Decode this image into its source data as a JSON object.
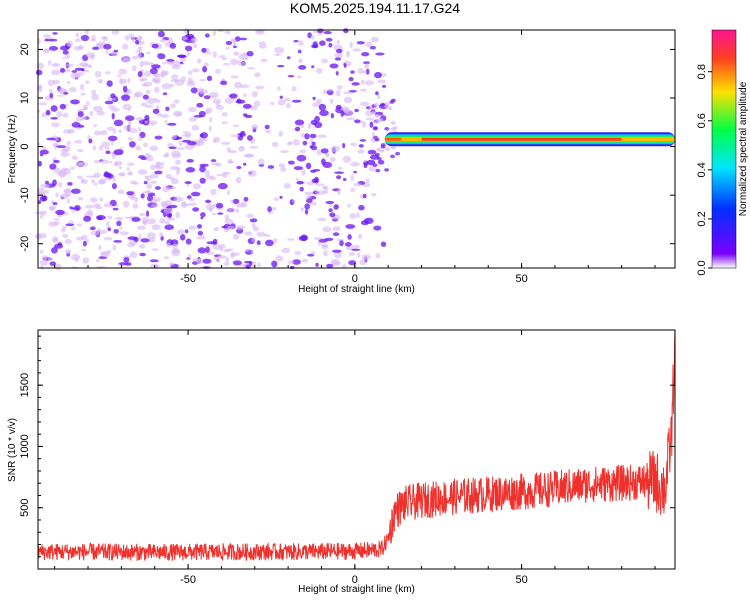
{
  "title": "KOM5.2025.194.11.17.G24",
  "colors": {
    "line": "#f0302c",
    "scatter_light": "#d9b8f5",
    "scatter_dark": "#6a12f0",
    "colormap": [
      "#ffffff",
      "#7a00ff",
      "#0030ff",
      "#00e5ff",
      "#00ff44",
      "#ffe000",
      "#ff4020",
      "#ff1493"
    ]
  },
  "chart_data": [
    {
      "type": "heatmap",
      "xlabel": "Height of straight line (km)",
      "ylabel": "Frequency (Hz)",
      "xlim": [
        -95,
        96
      ],
      "ylim": [
        -25,
        24
      ],
      "xticks": [
        -50,
        0,
        50
      ],
      "yticks": [
        20,
        10,
        0,
        -10,
        -20
      ],
      "colorbar": {
        "label": "Normalized spectral amplitude",
        "range": [
          0.0,
          0.97
        ],
        "ticks": [
          0.0,
          0.2,
          0.4,
          0.6,
          0.8
        ]
      },
      "band": {
        "x_range": [
          9,
          96
        ],
        "center_frequency_hz": 1.5,
        "peak_normalized_amplitude": 0.9
      },
      "noise_x_range": [
        -95,
        9
      ]
    },
    {
      "type": "line",
      "xlabel": "Height of straight line (km)",
      "ylabel": "SNR (10 * v/v)",
      "xlim": [
        -95,
        96
      ],
      "ylim": [
        0,
        1950
      ],
      "xticks": [
        -50,
        0,
        50
      ],
      "yticks": [
        500,
        1000,
        1500
      ],
      "series": [
        {
          "x": [
            -95,
            -80,
            -60,
            -40,
            -20,
            0,
            8,
            10,
            12,
            15,
            20,
            30,
            40,
            50,
            60,
            70,
            80,
            85,
            90,
            93,
            95,
            96
          ],
          "values": [
            140,
            140,
            135,
            140,
            140,
            145,
            160,
            250,
            470,
            530,
            560,
            590,
            610,
            630,
            655,
            690,
            700,
            710,
            720,
            650,
            1100,
            1900
          ]
        }
      ]
    }
  ]
}
